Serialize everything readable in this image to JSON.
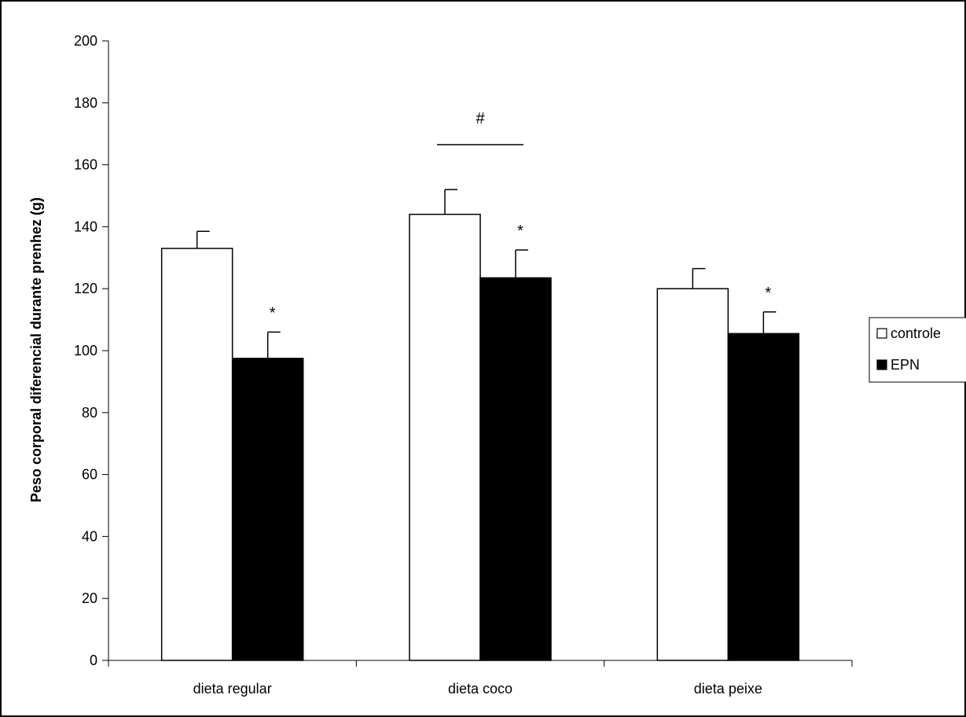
{
  "chart_data": {
    "type": "bar",
    "categories": [
      "dieta regular",
      "dieta coco",
      "dieta peixe"
    ],
    "series": [
      {
        "name": "controle",
        "values": [
          133,
          144,
          120
        ],
        "errors": [
          5.5,
          8,
          6.5
        ],
        "color": "#ffffff"
      },
      {
        "name": "EPN",
        "values": [
          97.5,
          123.5,
          105.5
        ],
        "errors": [
          8.5,
          9,
          7
        ],
        "color": "#000000"
      }
    ],
    "ylabel": "Peso corporal diferencial durante prenhez (g)",
    "ylim": [
      0,
      200
    ],
    "yticks": [
      0,
      20,
      40,
      60,
      80,
      100,
      120,
      140,
      160,
      180,
      200
    ],
    "grid": false,
    "legend_position": "right",
    "significance_marks": [
      {
        "symbol": "*",
        "category": 0,
        "series": 1
      },
      {
        "symbol": "*",
        "category": 1,
        "series": 1
      },
      {
        "symbol": "*",
        "category": 2,
        "series": 1
      }
    ],
    "group_annotation": {
      "symbol": "#",
      "category": 1
    }
  }
}
